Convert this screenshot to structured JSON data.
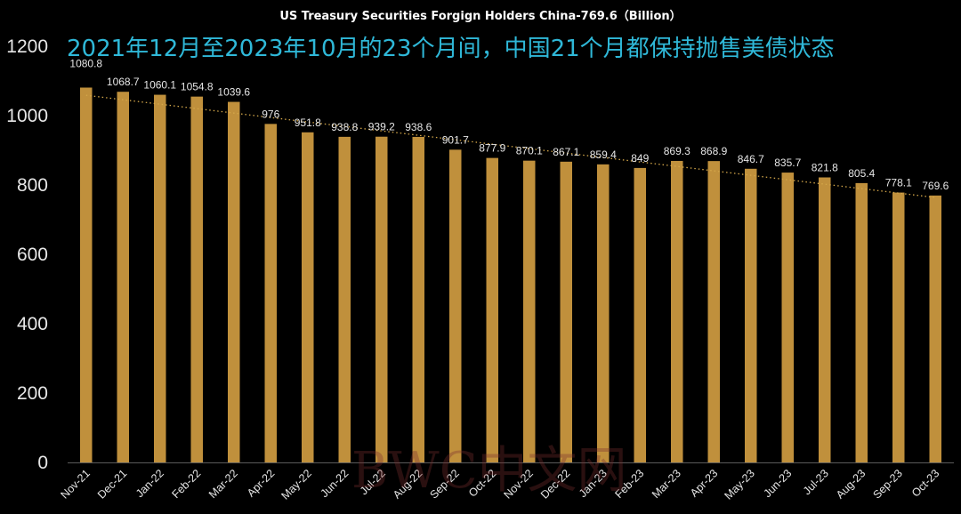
{
  "chart_data": {
    "type": "bar",
    "title": "US Treasury Securities Forgign Holders China-769.6（Billion）",
    "subtitle": "2021年12月至2023年10月的23个月间，中国21个月都保持抛售美债状态",
    "categories": [
      "Nov-21",
      "Dec-21",
      "Jan-22",
      "Feb-22",
      "Mar-22",
      "Apr-22",
      "May-22",
      "Jun-22",
      "Jul-22",
      "Aug-22",
      "Sep-22",
      "Oct-22",
      "Nov-22",
      "Dec-22",
      "Jan-23",
      "Feb-23",
      "Mar-23",
      "Apr-23",
      "May-23",
      "Jun-23",
      "Jul-23",
      "Aug-23",
      "Sep-23",
      "Oct-23"
    ],
    "values": [
      1080.8,
      1068.7,
      1060.1,
      1054.8,
      1039.6,
      976,
      951.8,
      938.8,
      939.2,
      938.6,
      901.7,
      877.9,
      870.1,
      867.1,
      859.4,
      849,
      869.3,
      868.9,
      846.7,
      835.7,
      821.8,
      805.4,
      778.1,
      769.6
    ],
    "data_labels": [
      "1080.8",
      "1068.7",
      "1060.1",
      "1054.8",
      "1039.6",
      "976",
      "951.8",
      "938.8",
      "939.2",
      "938.6",
      "901.7",
      "877.9",
      "870.1",
      "867.1",
      "859.4",
      "849",
      "869.3",
      "868.9",
      "846.7",
      "835.7",
      "821.8",
      "805.4",
      "778.1",
      "769.6"
    ],
    "ylim": [
      0,
      1200
    ],
    "yticks": [
      0,
      200,
      400,
      600,
      800,
      1000,
      1200
    ],
    "xlabel": "",
    "ylabel": "",
    "trendline": "linear",
    "grid": false,
    "legend": "none",
    "colors": {
      "background": "#000000",
      "bar": "#c0903c",
      "trendline": "#d4a74a",
      "title": "#ffffff",
      "subtitle": "#2fb8d8",
      "axis_text": "#e6e6e6"
    }
  },
  "watermark": "BWC中文网"
}
